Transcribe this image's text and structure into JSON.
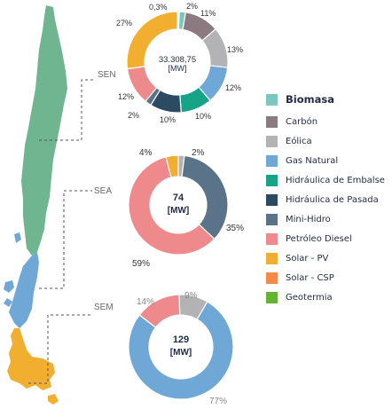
{
  "legend": [
    {
      "label": "Biomasa",
      "color": "#7cc8c0"
    },
    {
      "label": "Carbón",
      "color": "#8b7a80"
    },
    {
      "label": "Eólica",
      "color": "#b3b3b5"
    },
    {
      "label": "Gas Natural",
      "color": "#6fa8d6"
    },
    {
      "label": "Hidráulica de Embalse",
      "color": "#16a489"
    },
    {
      "label": "Hidráulica de Pasada",
      "color": "#2d4a63"
    },
    {
      "label": "Mini-Hidro",
      "color": "#5a7388"
    },
    {
      "label": "Petróleo Diesel",
      "color": "#ee8a8c"
    },
    {
      "label": "Solar - PV",
      "color": "#f2ae2f"
    },
    {
      "label": "Solar - CSP",
      "color": "#f38a4a"
    },
    {
      "label": "Geotermia",
      "color": "#66b233"
    }
  ],
  "chart_data": [
    {
      "type": "pie",
      "title": "SEN",
      "center_value": "33.308,75",
      "center_unit": "[MW]",
      "slices": [
        {
          "label": "Biomasa",
          "value": 2,
          "display": "2%",
          "color": "#7cc8c0"
        },
        {
          "label": "Carbón",
          "value": 11,
          "display": "11%",
          "color": "#8b7a80"
        },
        {
          "label": "Eólica",
          "value": 13,
          "display": "13%",
          "color": "#b3b3b5"
        },
        {
          "label": "Gas Natural",
          "value": 12,
          "display": "12%",
          "color": "#6fa8d6"
        },
        {
          "label": "Hidráulica de Embalse",
          "value": 10,
          "display": "10%",
          "color": "#16a489"
        },
        {
          "label": "Hidráulica de Pasada",
          "value": 10,
          "display": "10%",
          "color": "#2d4a63"
        },
        {
          "label": "Mini-Hidro",
          "value": 2,
          "display": "2%",
          "color": "#5a7388"
        },
        {
          "label": "Petróleo Diesel",
          "value": 12,
          "display": "12%",
          "color": "#ee8a8c"
        },
        {
          "label": "Solar - PV",
          "value": 27,
          "display": "27%",
          "color": "#f2ae2f"
        },
        {
          "label": "Solar - CSP",
          "value": 0.3,
          "display": "0,3%",
          "color": "#f38a4a"
        },
        {
          "label": "Geotermia",
          "value": 0.3,
          "display": "",
          "color": "#66b233"
        }
      ]
    },
    {
      "type": "pie",
      "title": "SEA",
      "center_value": "74",
      "center_unit": "[MW]",
      "slices": [
        {
          "label": "Eólica",
          "value": 2,
          "display": "2%",
          "color": "#b3b3b5"
        },
        {
          "label": "Mini-Hidro",
          "value": 35,
          "display": "35%",
          "color": "#5a7388"
        },
        {
          "label": "Petróleo Diesel",
          "value": 59,
          "display": "59%",
          "color": "#ee8a8c"
        },
        {
          "label": "Solar - PV",
          "value": 4,
          "display": "4%",
          "color": "#f2ae2f"
        }
      ]
    },
    {
      "type": "pie",
      "title": "SEM",
      "center_value": "129",
      "center_unit": "[MW]",
      "slices": [
        {
          "label": "Eólica",
          "value": 9,
          "display": "9%",
          "color": "#b3b3b5"
        },
        {
          "label": "Gas Natural",
          "value": 77,
          "display": "77%",
          "color": "#6fa8d6"
        },
        {
          "label": "Petróleo Diesel",
          "value": 14,
          "display": "14%",
          "color": "#ee8a8c"
        }
      ]
    }
  ],
  "map": {
    "colors": {
      "SEN": "#6fb58f",
      "SEA": "#6fa8d6",
      "SEM": "#f2ae2f",
      "connector": "#555555"
    }
  }
}
